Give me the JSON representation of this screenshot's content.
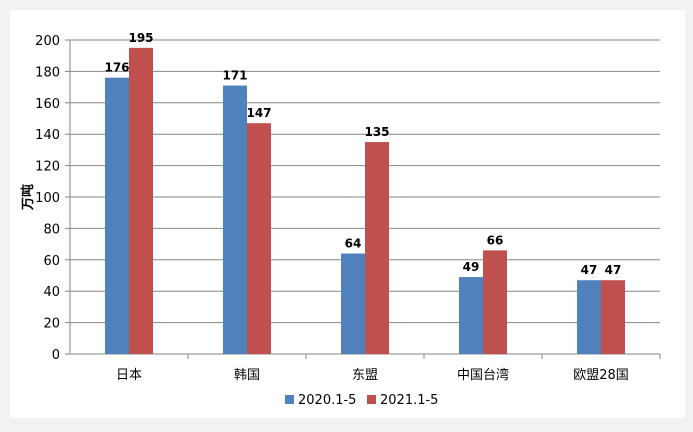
{
  "chart_data": {
    "type": "bar",
    "title": "",
    "xlabel": "",
    "ylabel": "万吨",
    "ylim": [
      0,
      200
    ],
    "ytick_step": 20,
    "grid": true,
    "legend_position": "bottom",
    "categories": [
      "日本",
      "韩国",
      "东盟",
      "中国台湾",
      "欧盟28国"
    ],
    "series": [
      {
        "name": "2020.1-5",
        "color": "#4f81bd",
        "values": [
          176,
          171,
          64,
          49,
          47
        ]
      },
      {
        "name": "2021.1-5",
        "color": "#c0504d",
        "values": [
          195,
          147,
          135,
          66,
          47
        ]
      }
    ]
  }
}
